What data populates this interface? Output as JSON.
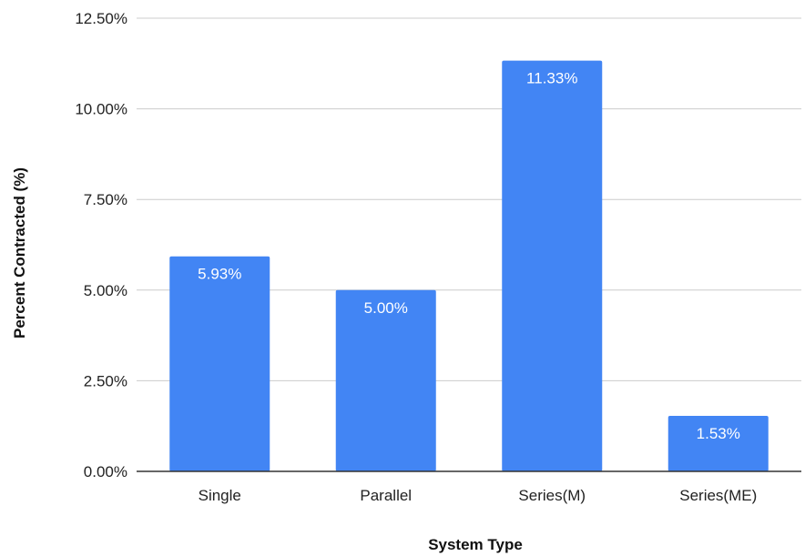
{
  "chart_data": {
    "type": "bar",
    "title": "",
    "xlabel": "System Type",
    "ylabel": "Percent Contracted (%)",
    "categories": [
      "Single",
      "Parallel",
      "Series(M)",
      "Series(ME)"
    ],
    "values": [
      5.93,
      5.0,
      11.33,
      1.53
    ],
    "data_labels": [
      "5.93%",
      "5.00%",
      "11.33%",
      "1.53%"
    ],
    "ylim": [
      0,
      12.5
    ],
    "yticks": [
      0,
      2.5,
      5,
      7.5,
      10,
      12.5
    ],
    "ytick_labels": [
      "0.00%",
      "2.50%",
      "5.00%",
      "7.50%",
      "10.00%",
      "12.50%"
    ],
    "grid": true,
    "legend": "none",
    "colors": {
      "bar": "#4285f4",
      "grid": "#cccccc",
      "axis": "#333333",
      "label": "#ffffff"
    }
  }
}
